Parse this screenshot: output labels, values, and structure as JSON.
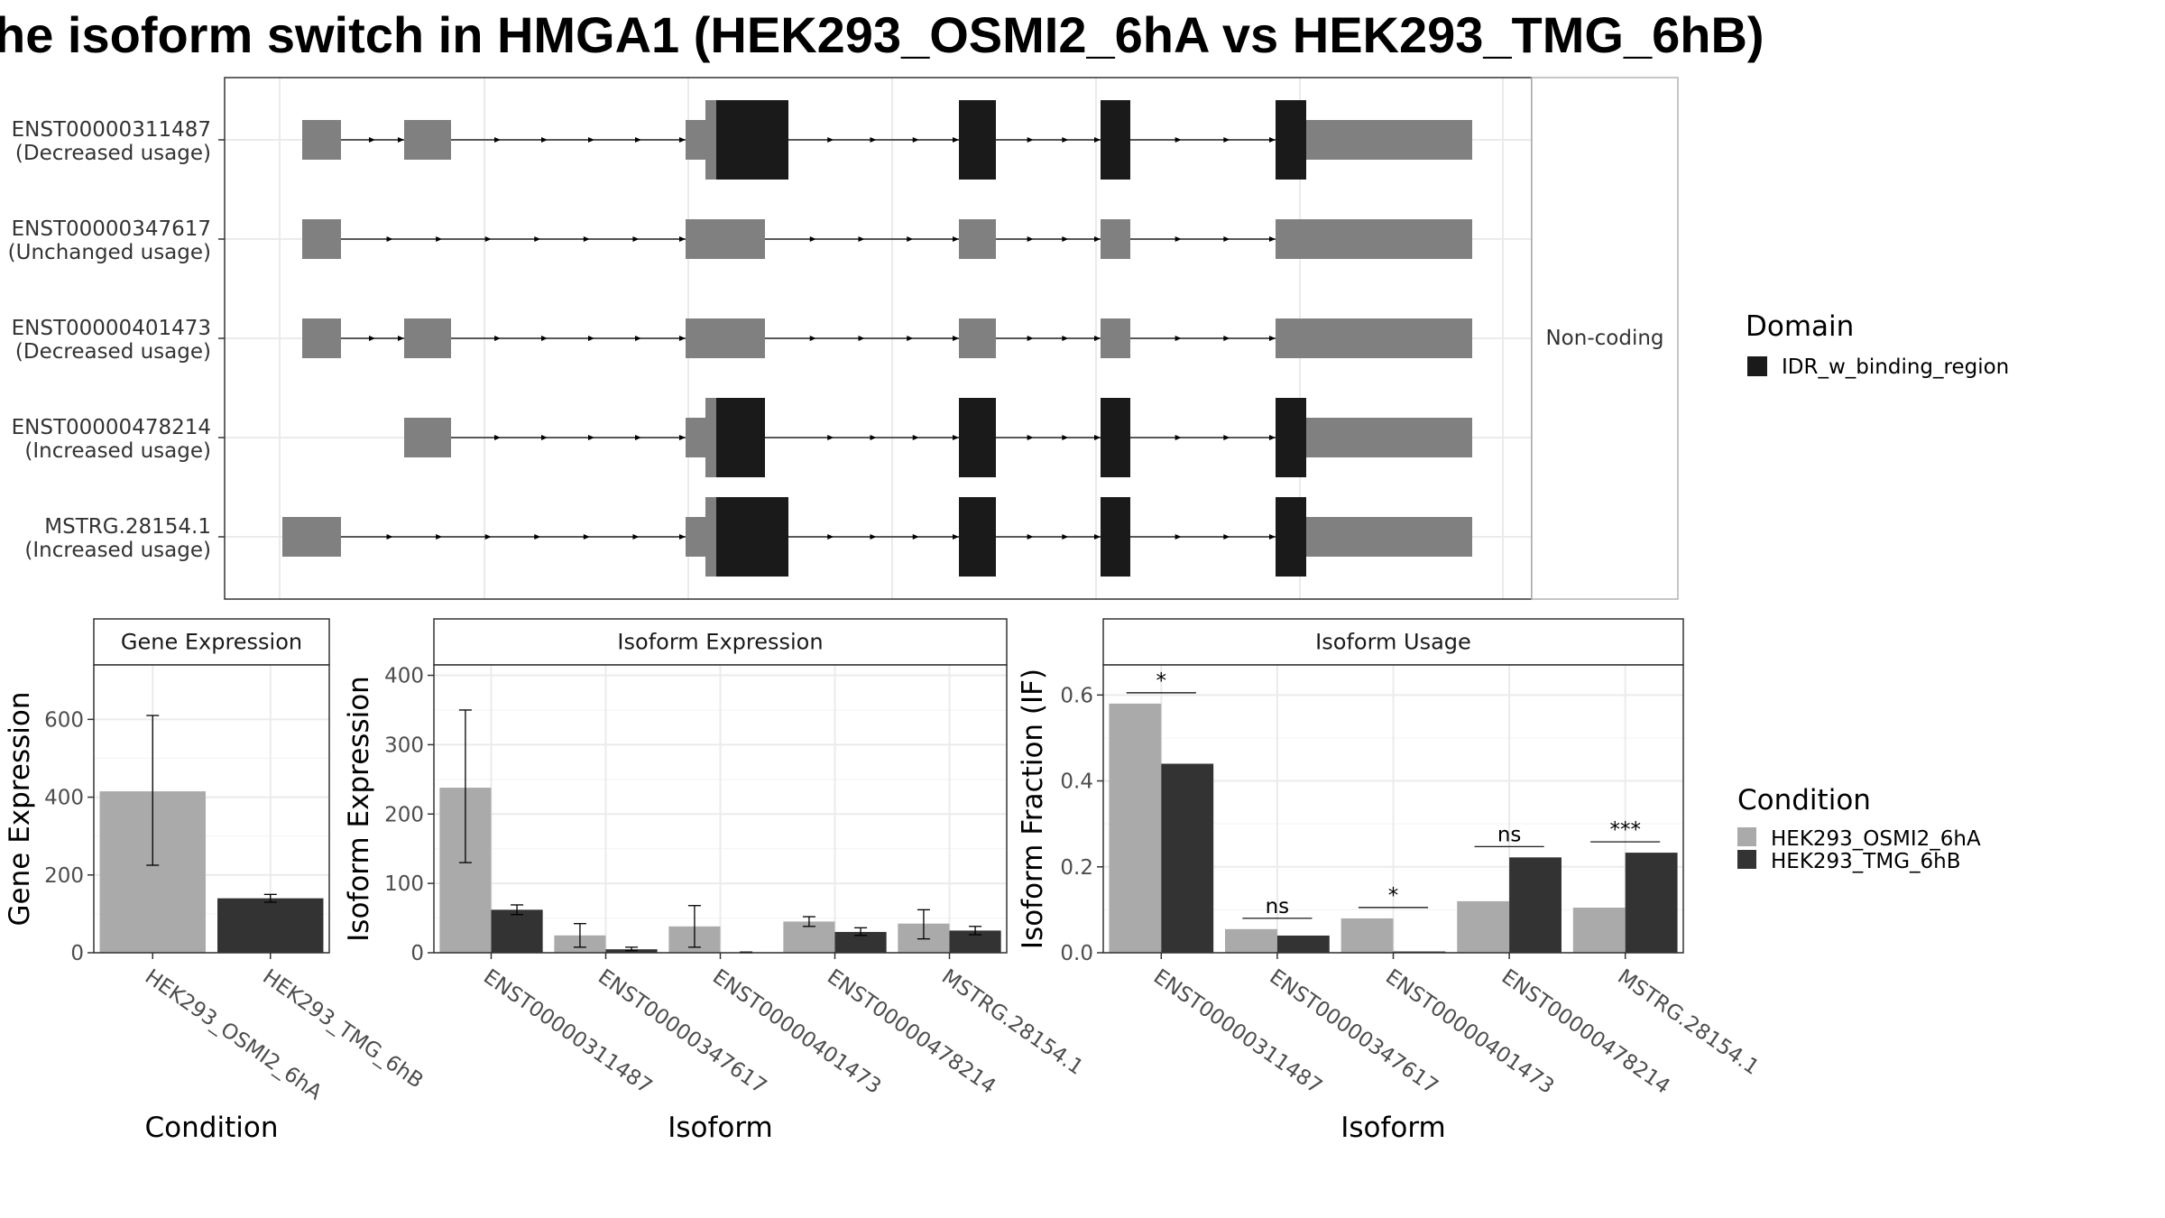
{
  "title": "he isoform switch in HMGA1 (HEK293_OSMI2_6hA vs HEK293_TMG_6hB)",
  "colors": {
    "exon": "#808080",
    "domain": "#1a1a1a",
    "cond_a": "#aaaaaa",
    "cond_b": "#333333",
    "grid": "#ebebeb",
    "panel_border": "#333333",
    "strip_fill": "#ffffff"
  },
  "transcript_plot": {
    "facet_label": "Non-coding",
    "transcripts": [
      {
        "id": "ENST00000311487",
        "usage": "(Decreased usage)"
      },
      {
        "id": "ENST00000347617",
        "usage": "(Unchanged usage)"
      },
      {
        "id": "ENST00000401473",
        "usage": "(Decreased usage)"
      },
      {
        "id": "ENST00000478214",
        "usage": "(Increased usage)"
      },
      {
        "id": "MSTRG.28154.1",
        "usage": "(Increased usage)"
      }
    ],
    "legend": {
      "title": "Domain",
      "items": [
        "IDR_w_binding_region"
      ]
    }
  },
  "gene_expression": {
    "strip": "Gene Expression",
    "ylabel": "Gene Expression",
    "xlabel": "Condition",
    "yticks": [
      "0",
      "200",
      "400",
      "600"
    ]
  },
  "isoform_expression": {
    "strip": "Isoform Expression",
    "ylabel": "Isoform Expression",
    "xlabel": "Isoform",
    "yticks": [
      "0",
      "100",
      "200",
      "300",
      "400"
    ]
  },
  "isoform_usage": {
    "strip": "Isoform Usage",
    "ylabel": "Isoform Fraction (IF)",
    "xlabel": "Isoform",
    "yticks": [
      "0.0",
      "0.2",
      "0.4",
      "0.6"
    ],
    "significance": [
      "*",
      "ns",
      "*",
      "ns",
      "***"
    ]
  },
  "condition_legend": {
    "title": "Condition",
    "items": [
      "HEK293_OSMI2_6hA",
      "HEK293_TMG_6hB"
    ]
  },
  "chart_data": [
    {
      "type": "bar",
      "title": "Gene Expression",
      "xlabel": "Condition",
      "ylabel": "Gene Expression",
      "categories": [
        "HEK293_OSMI2_6hA",
        "HEK293_TMG_6hB"
      ],
      "values": [
        415,
        140
      ],
      "error_low": [
        225,
        130
      ],
      "error_high": [
        610,
        150
      ],
      "ylim": [
        0,
        740
      ]
    },
    {
      "type": "bar",
      "title": "Isoform Expression",
      "xlabel": "Isoform",
      "ylabel": "Isoform Expression",
      "categories": [
        "ENST00000311487",
        "ENST00000347617",
        "ENST00000401473",
        "ENST00000478214",
        "MSTRG.28154.1"
      ],
      "series": [
        {
          "name": "HEK293_OSMI2_6hA",
          "values": [
            238,
            25,
            38,
            45,
            42
          ],
          "error_low": [
            130,
            8,
            8,
            38,
            20
          ],
          "error_high": [
            350,
            42,
            68,
            52,
            62
          ]
        },
        {
          "name": "HEK293_TMG_6hB",
          "values": [
            62,
            5,
            0,
            30,
            32
          ],
          "error_low": [
            55,
            3,
            0,
            25,
            26
          ],
          "error_high": [
            69,
            8,
            1,
            36,
            38
          ]
        }
      ],
      "ylim": [
        0,
        415
      ]
    },
    {
      "type": "bar",
      "title": "Isoform Usage",
      "xlabel": "Isoform",
      "ylabel": "Isoform Fraction (IF)",
      "categories": [
        "ENST00000311487",
        "ENST00000347617",
        "ENST00000401473",
        "ENST00000478214",
        "MSTRG.28154.1"
      ],
      "series": [
        {
          "name": "HEK293_OSMI2_6hA",
          "values": [
            0.58,
            0.055,
            0.08,
            0.12,
            0.105
          ]
        },
        {
          "name": "HEK293_TMG_6hB",
          "values": [
            0.44,
            0.04,
            0.003,
            0.222,
            0.233
          ]
        }
      ],
      "significance": [
        "*",
        "ns",
        "*",
        "ns",
        "***"
      ],
      "ylim": [
        0,
        0.67
      ]
    }
  ]
}
